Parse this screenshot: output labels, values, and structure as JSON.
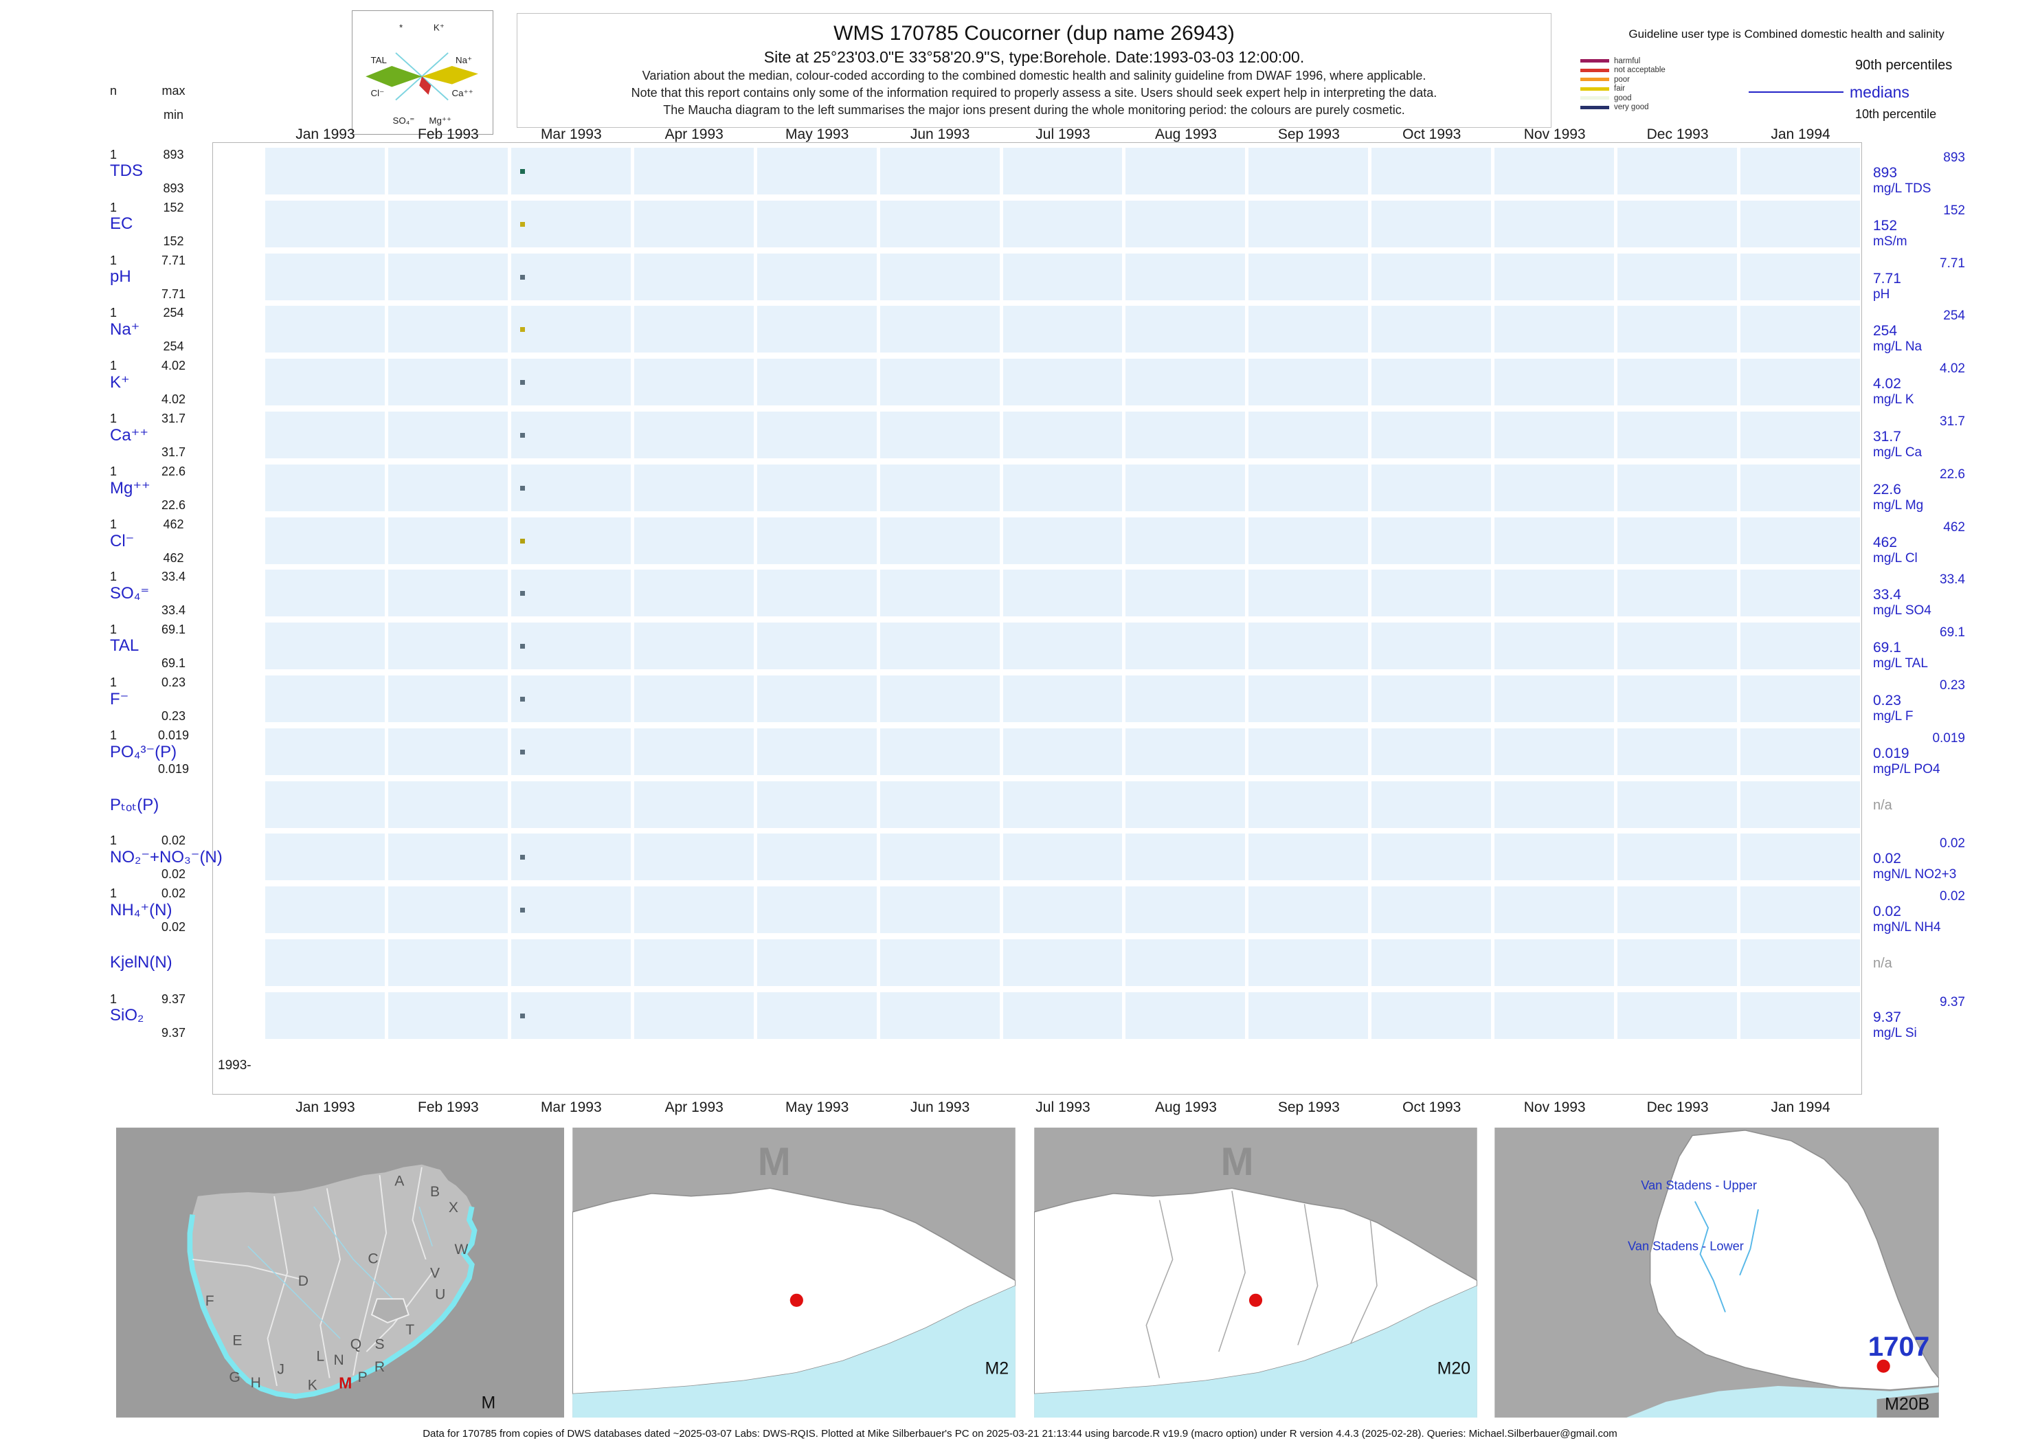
{
  "header": {
    "title": "WMS 170785  Coucorner (dup name 26943)",
    "site_line": "Site at 25°23'03.0\"E 33°58'20.9\"S, type:Borehole. Date:1993-03-03 12:00:00.",
    "note1": "Variation about the median,  colour-coded according to the combined domestic health and salinity guideline from DWAF 1996, where applicable.",
    "note2": "Note that this report contains only some of the information required to properly assess a site. Users should seek expert help in interpreting the data.",
    "note3": "The Maucha diagram to the left summarises the major ions present during the whole monitoring period: the colours are purely cosmetic."
  },
  "maucha": {
    "labels": {
      "star": "*",
      "k": "K⁺",
      "na": "Na⁺",
      "ca": "Ca⁺⁺",
      "mg": "Mg⁺⁺",
      "so4": "SO₄⁼",
      "cl": "Cl⁻",
      "tal": "TAL"
    }
  },
  "legend": {
    "user_type": "Guideline user type is Combined domestic health and salinity",
    "classes": [
      {
        "label": "harmful",
        "color": "#9b1b5c"
      },
      {
        "label": "not acceptable",
        "color": "#d9352c"
      },
      {
        "label": "poor",
        "color": "#f59a23"
      },
      {
        "label": "fair",
        "color": "#e3c800"
      },
      {
        "label": "good",
        "color": "#eef6e4"
      },
      {
        "label": "very good",
        "color": "#27316b"
      }
    ],
    "p90": "90th percentiles",
    "medians": "medians",
    "p10": "10th percentile"
  },
  "axis": {
    "n_label": "n",
    "max_label": "max",
    "min_label": "min",
    "year_tick": "1993-"
  },
  "chart_data": {
    "type": "scatter",
    "title": "WMS 170785 Coucorner (dup name 26943)",
    "sample_date": "1993-03-03 12:00:00",
    "x_range": [
      "Jan 1993",
      "Jan 1994"
    ],
    "months": [
      "Jan 1993",
      "Feb 1993",
      "Mar 1993",
      "Apr 1993",
      "May 1993",
      "Jun 1993",
      "Jul 1993",
      "Aug 1993",
      "Sep 1993",
      "Oct 1993",
      "Nov 1993",
      "Dec 1993",
      "Jan 1994"
    ],
    "n_samples": 1,
    "parameters": [
      {
        "id": "TDS",
        "label": "TDS",
        "n": "1",
        "max": "893",
        "min": "893",
        "p90": "893",
        "median": "893",
        "value": 893,
        "unit": "mg/L TDS",
        "point_color": "#1d6b52"
      },
      {
        "id": "EC",
        "label": "EC",
        "n": "1",
        "max": "152",
        "min": "152",
        "p90": "152",
        "median": "152",
        "value": 152,
        "unit": "mS/m",
        "point_color": "#c3ad15"
      },
      {
        "id": "pH",
        "label": "pH",
        "n": "1",
        "max": "7.71",
        "min": "7.71",
        "p90": "7.71",
        "median": "7.71",
        "value": 7.71,
        "unit": "pH",
        "point_color": "#5b6e7c"
      },
      {
        "id": "Na",
        "label": "Na⁺",
        "n": "1",
        "max": "254",
        "min": "254",
        "p90": "254",
        "median": "254",
        "value": 254,
        "unit": "mg/L Na",
        "point_color": "#c3ad15"
      },
      {
        "id": "K",
        "label": "K⁺",
        "n": "1",
        "max": "4.02",
        "min": "4.02",
        "p90": "4.02",
        "median": "4.02",
        "value": 4.02,
        "unit": "mg/L K",
        "point_color": "#5b6e7c"
      },
      {
        "id": "Ca",
        "label": "Ca⁺⁺",
        "n": "1",
        "max": "31.7",
        "min": "31.7",
        "p90": "31.7",
        "median": "31.7",
        "value": 31.7,
        "unit": "mg/L Ca",
        "point_color": "#5b6e7c"
      },
      {
        "id": "Mg",
        "label": "Mg⁺⁺",
        "n": "1",
        "max": "22.6",
        "min": "22.6",
        "p90": "22.6",
        "median": "22.6",
        "value": 22.6,
        "unit": "mg/L Mg",
        "point_color": "#5b6e7c"
      },
      {
        "id": "Cl",
        "label": "Cl⁻",
        "n": "1",
        "max": "462",
        "min": "462",
        "p90": "462",
        "median": "462",
        "value": 462,
        "unit": "mg/L Cl",
        "point_color": "#b3a110"
      },
      {
        "id": "SO4",
        "label": "SO₄⁼",
        "n": "1",
        "max": "33.4",
        "min": "33.4",
        "p90": "33.4",
        "median": "33.4",
        "value": 33.4,
        "unit": "mg/L SO4",
        "point_color": "#5b6e7c"
      },
      {
        "id": "TAL",
        "label": "TAL",
        "n": "1",
        "max": "69.1",
        "min": "69.1",
        "p90": "69.1",
        "median": "69.1",
        "value": 69.1,
        "unit": "mg/L TAL",
        "point_color": "#5b6e7c"
      },
      {
        "id": "F",
        "label": "F⁻",
        "n": "1",
        "max": "0.23",
        "min": "0.23",
        "p90": "0.23",
        "median": "0.23",
        "value": 0.23,
        "unit": "mg/L F",
        "point_color": "#5b6e7c"
      },
      {
        "id": "PO4",
        "label": "PO₄³⁻(P)",
        "n": "1",
        "max": "0.019",
        "min": "0.019",
        "p90": "0.019",
        "median": "0.019",
        "value": 0.019,
        "unit": "mgP/L PO4",
        "point_color": "#5b6e7c"
      },
      {
        "id": "Ptot",
        "label": "Pₜₒₜ(P)",
        "na": "n/a"
      },
      {
        "id": "NO2NO3",
        "label": "NO₂⁻+NO₃⁻(N)",
        "n": "1",
        "max": "0.02",
        "min": "0.02",
        "p90": "0.02",
        "median": "0.02",
        "value": 0.02,
        "unit": "mgN/L NO2+3",
        "point_color": "#5b6e7c"
      },
      {
        "id": "NH4",
        "label": "NH₄⁺(N)",
        "n": "1",
        "max": "0.02",
        "min": "0.02",
        "p90": "0.02",
        "median": "0.02",
        "value": 0.02,
        "unit": "mgN/L NH4",
        "point_color": "#5b6e7c"
      },
      {
        "id": "KjelN",
        "label": "KjelN(N)",
        "na": "n/a"
      },
      {
        "id": "SiO2",
        "label": "SiO₂",
        "n": "1",
        "max": "9.37",
        "min": "9.37",
        "p90": "9.37",
        "median": "9.37",
        "value": 9.37,
        "unit": "mg/L Si",
        "point_color": "#5b6e7c"
      }
    ]
  },
  "maps": {
    "drainage": {
      "letters": [
        "A",
        "B",
        "X",
        "C",
        "W",
        "D",
        "V",
        "U",
        "T",
        "F",
        "E",
        "Q",
        "S",
        "L",
        "N",
        "J",
        "R",
        "P",
        "G",
        "H",
        "K"
      ],
      "station_letter": "M",
      "corner_label": "M"
    },
    "m2": {
      "big_label": "M",
      "corner_label": "M2"
    },
    "m20": {
      "big_label": "M",
      "corner_label": "M20"
    },
    "m20b": {
      "upper": "Van Stadens - Upper",
      "lower": "Van Stadens - Lower",
      "station_no": "1707",
      "corner_label": "M20B"
    }
  },
  "footer": {
    "text": "Data for 170785 from copies of DWS databases dated ~2025-03-07 Labs: DWS-RQIS. Plotted at Mike Silberbauer's PC on 2025-03-21 21:13:44 using barcode.R v19.9 (macro option) under R version 4.4.3 (2025-02-28). Queries: Michael.Silberbauer@gmail.com"
  }
}
